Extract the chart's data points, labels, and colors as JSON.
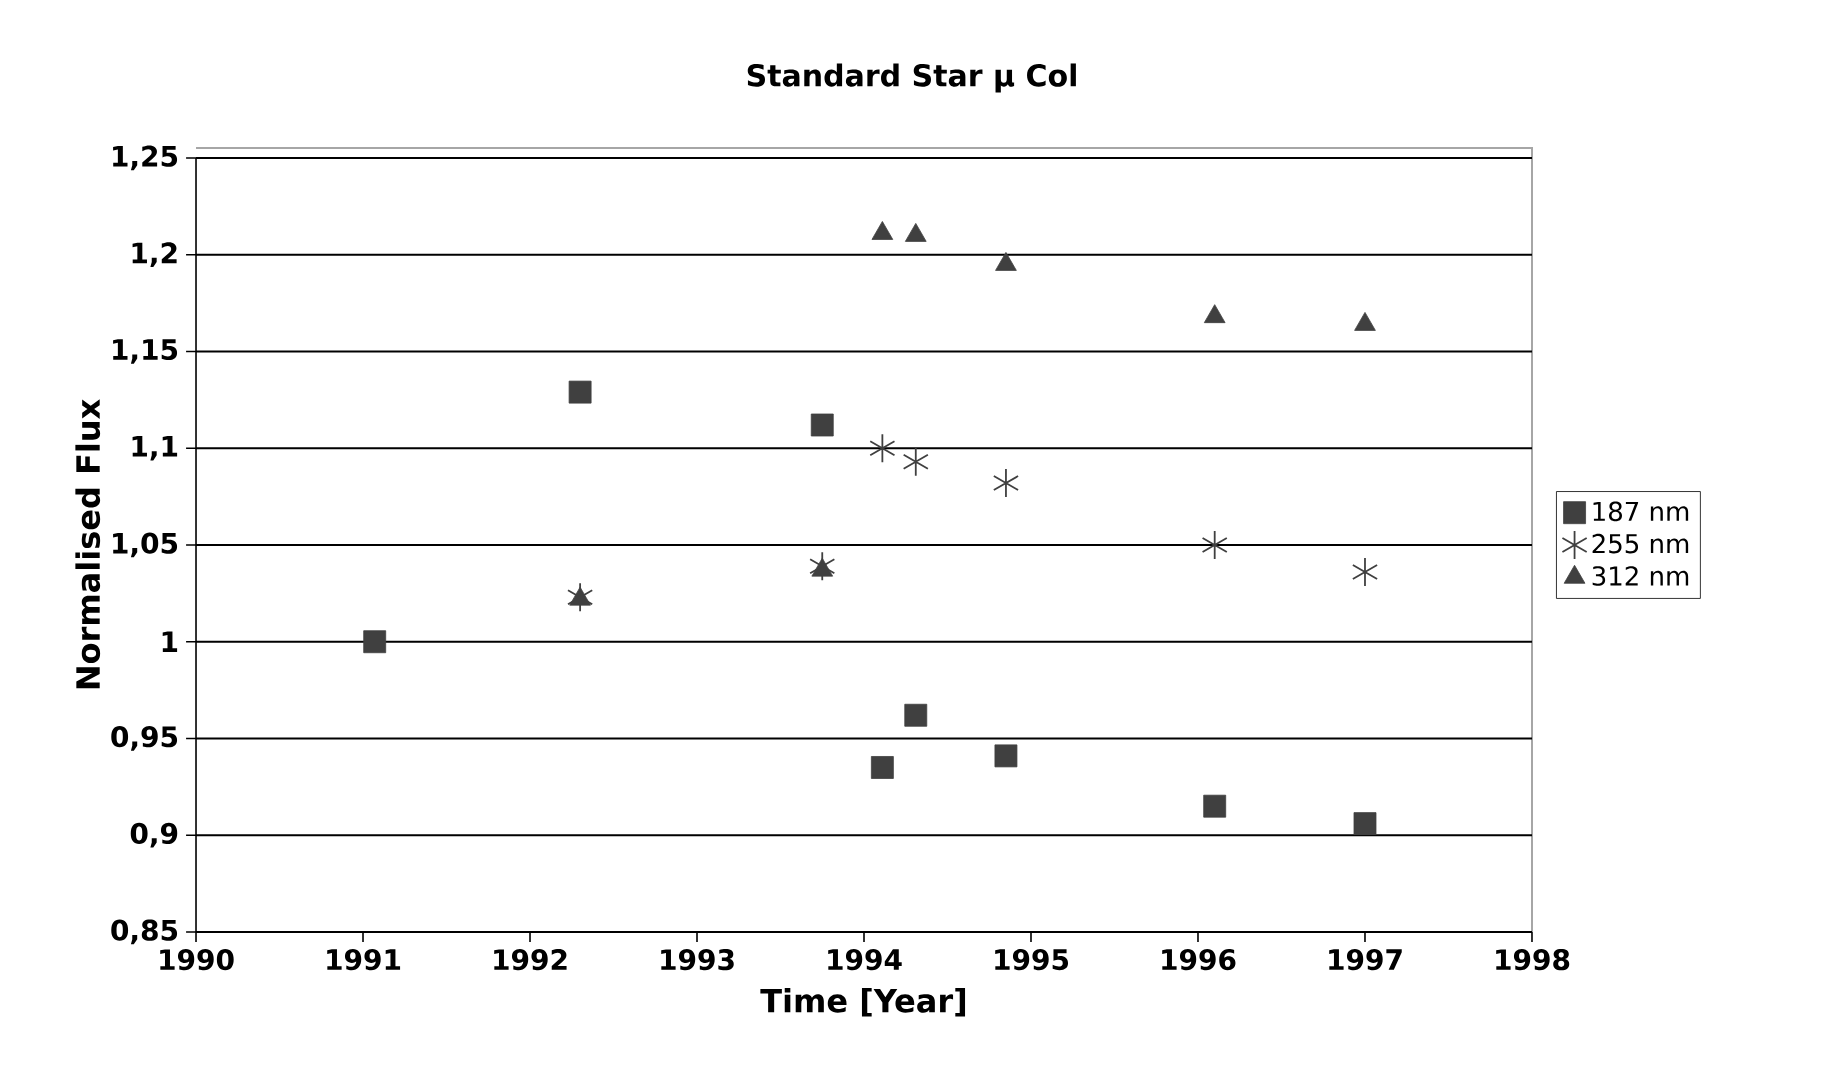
{
  "chart_data": {
    "type": "scatter",
    "title": "Standard Star µ Col",
    "xlabel": "Time [Year]",
    "ylabel": "Normalised Flux",
    "series": [
      {
        "name": "187 nm",
        "color": "#404040",
        "marker": "square",
        "x": [
          1991.07,
          1992.3,
          1993.75,
          1994.11,
          1994.31,
          1994.85,
          1996.1,
          1997.0
        ],
        "values": [
          1.0,
          1.129,
          1.112,
          0.935,
          0.962,
          0.941,
          0.915,
          0.906
        ]
      },
      {
        "name": "255 nm",
        "color": "#404040",
        "marker": "cross",
        "x": [
          1992.3,
          1993.75,
          1994.11,
          1994.31,
          1994.85,
          1996.1,
          1997.0
        ],
        "values": [
          1.023,
          1.039,
          1.1,
          1.093,
          1.082,
          1.05,
          1.036
        ]
      },
      {
        "name": "312 nm",
        "color": "#404040",
        "marker": "triangle",
        "x": [
          1992.3,
          1993.75,
          1994.11,
          1994.31,
          1994.85,
          1996.1,
          1997.0
        ],
        "values": [
          1.022,
          1.037,
          1.211,
          1.21,
          1.195,
          1.168,
          1.164
        ]
      }
    ],
    "xlim": [
      1990,
      1998
    ],
    "xticks": [
      1990,
      1991,
      1992,
      1993,
      1994,
      1995,
      1996,
      1997,
      1998
    ],
    "ylim": [
      0.85,
      1.25
    ],
    "yticks": [
      {
        "value": 0.85,
        "label": "0,85"
      },
      {
        "value": 0.9,
        "label": "0,9"
      },
      {
        "value": 0.95,
        "label": "0,95"
      },
      1,
      {
        "value": 1.05,
        "label": "1,05"
      },
      {
        "value": 1.1,
        "label": "1,1"
      },
      {
        "value": 1.15,
        "label": "1,15"
      },
      {
        "value": 1.2,
        "label": "1,2"
      },
      {
        "value": 1.25,
        "label": "1,25"
      }
    ],
    "grid": "y",
    "legend": "right"
  }
}
